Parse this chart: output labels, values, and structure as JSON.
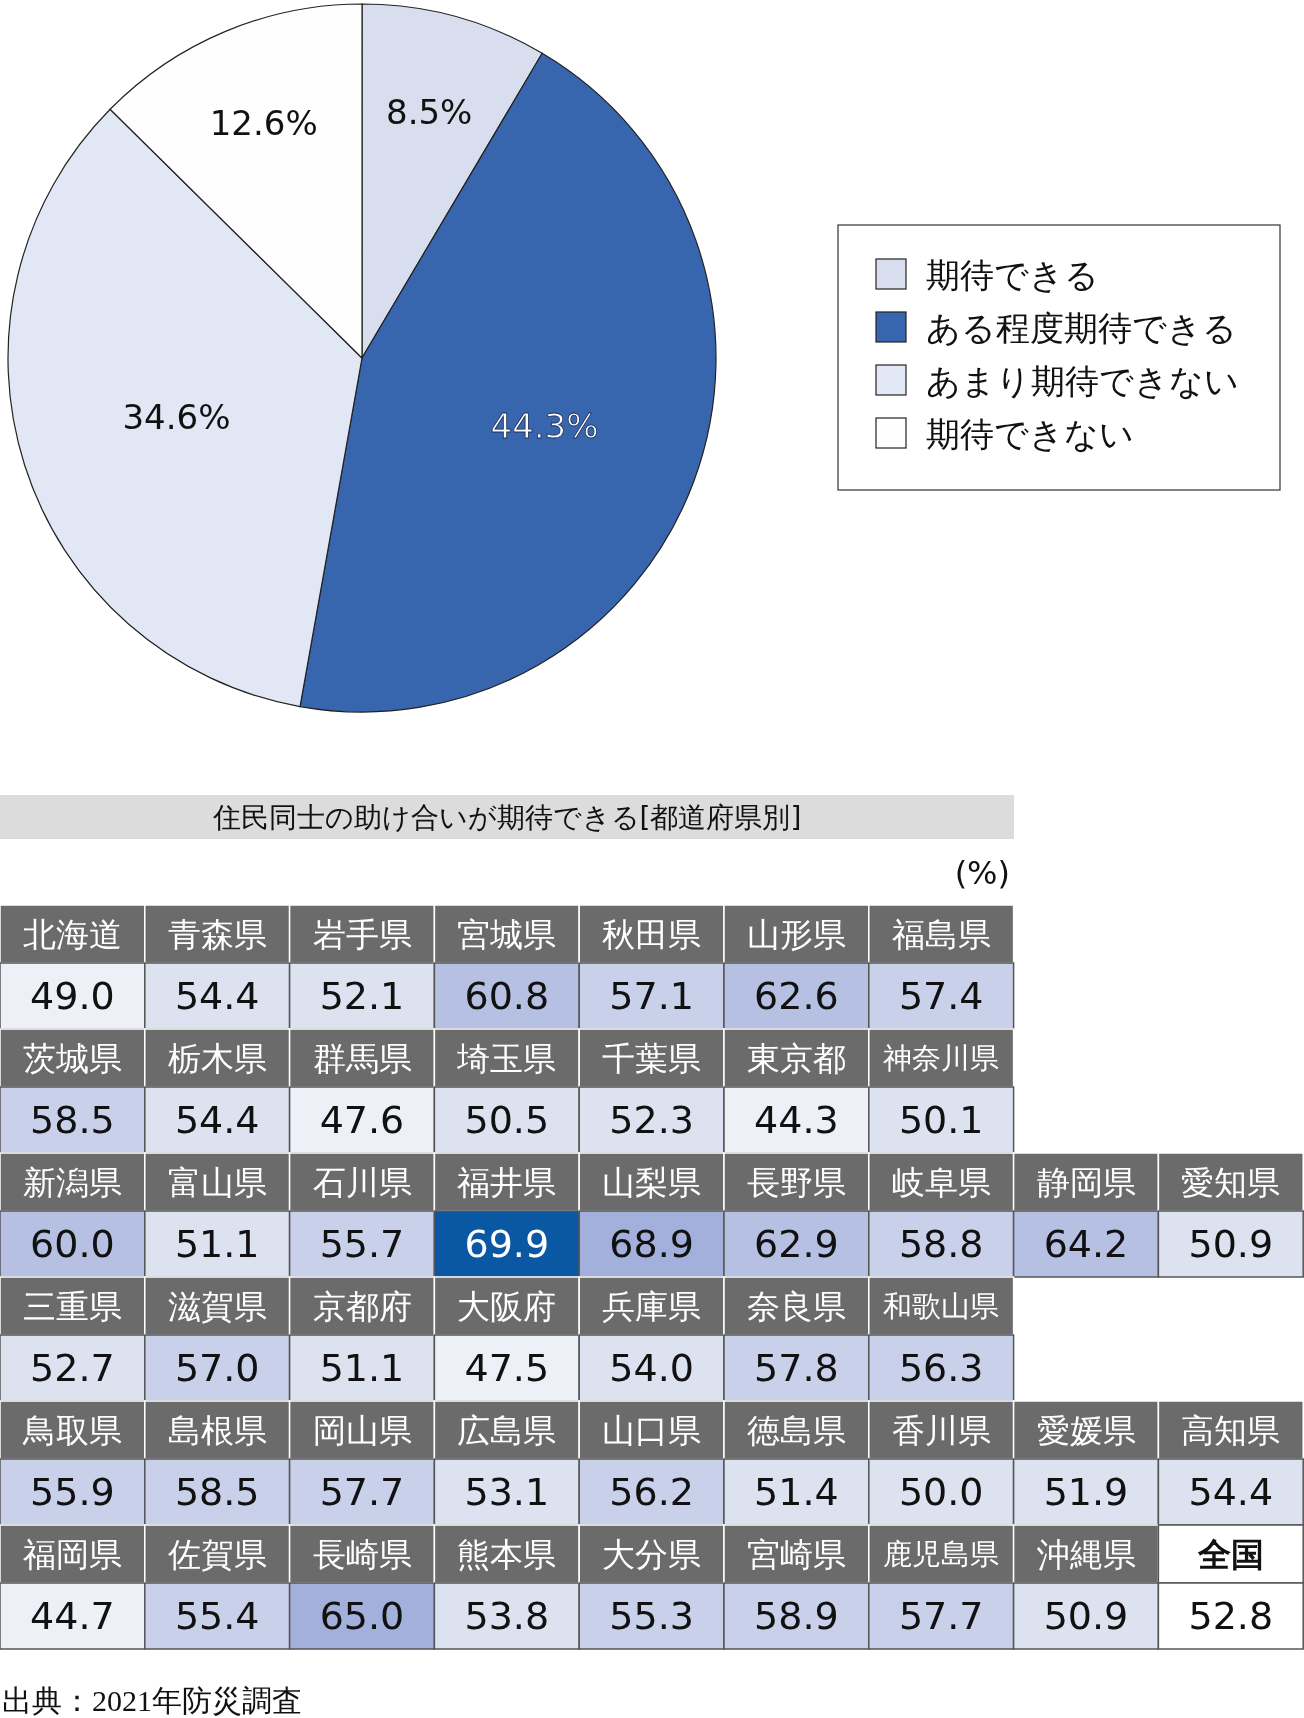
{
  "chart_data": [
    {
      "type": "pie",
      "categories": [
        "期待できる",
        "ある程度期待できる",
        "あまり期待できない",
        "期待できない"
      ],
      "values": [
        8.5,
        44.3,
        34.6,
        12.6
      ],
      "colors": [
        "#d9deee",
        "#3766ae",
        "#e2e7f5",
        "#fefefe"
      ],
      "value_labels": [
        "8.5%",
        "44.3%",
        "34.6%",
        "12.6%"
      ],
      "legend": "right"
    },
    {
      "type": "other",
      "title": "住民同士の助け合いが期待できる[都道府県別]",
      "annotations": [
        "(%)",
        "出典：2021年防災調査"
      ],
      "categories": [
        "北海道",
        "青森県",
        "岩手県",
        "宮城県",
        "秋田県",
        "山形県",
        "福島県",
        null,
        null,
        "茨城県",
        "栃木県",
        "群馬県",
        "埼玉県",
        "千葉県",
        "東京都",
        "神奈川県",
        null,
        null,
        "新潟県",
        "富山県",
        "石川県",
        "福井県",
        "山梨県",
        "長野県",
        "岐阜県",
        "静岡県",
        "愛知県",
        "三重県",
        "滋賀県",
        "京都府",
        "大阪府",
        "兵庫県",
        "奈良県",
        "和歌山県",
        null,
        null,
        "鳥取県",
        "島根県",
        "岡山県",
        "広島県",
        "山口県",
        "徳島県",
        "香川県",
        "愛媛県",
        "高知県",
        "福岡県",
        "佐賀県",
        "長崎県",
        "熊本県",
        "大分県",
        "宮崎県",
        "鹿児島県",
        "沖縄県",
        "全国"
      ],
      "values": [
        49.0,
        54.4,
        52.1,
        60.8,
        57.1,
        62.6,
        57.4,
        null,
        null,
        58.5,
        54.4,
        47.6,
        50.5,
        52.3,
        44.3,
        50.1,
        null,
        null,
        60.0,
        51.1,
        55.7,
        69.9,
        68.9,
        62.9,
        58.8,
        64.2,
        50.9,
        52.7,
        57.0,
        51.1,
        47.5,
        54.0,
        57.8,
        56.3,
        null,
        null,
        55.9,
        58.5,
        57.7,
        53.1,
        56.2,
        51.4,
        50.0,
        51.9,
        54.4,
        44.7,
        55.4,
        65.0,
        53.8,
        55.3,
        58.9,
        57.7,
        50.9,
        52.8
      ],
      "value_labels": [
        "49.0",
        "54.4",
        "52.1",
        "60.8",
        "57.1",
        "62.6",
        "57.4",
        null,
        null,
        "58.5",
        "54.4",
        "47.6",
        "50.5",
        "52.3",
        "44.3",
        "50.1",
        null,
        null,
        "60.0",
        "51.1",
        "55.7",
        "69.9",
        "68.9",
        "62.9",
        "58.8",
        "64.2",
        "50.9",
        "52.7",
        "57.0",
        "51.1",
        "47.5",
        "54.0",
        "57.8",
        "56.3",
        null,
        null,
        "55.9",
        "58.5",
        "57.7",
        "53.1",
        "56.2",
        "51.4",
        "50.0",
        "51.9",
        "54.4",
        "44.7",
        "55.4",
        "65.0",
        "53.8",
        "55.3",
        "58.9",
        "57.7",
        "50.9",
        "52.8"
      ]
    }
  ]
}
